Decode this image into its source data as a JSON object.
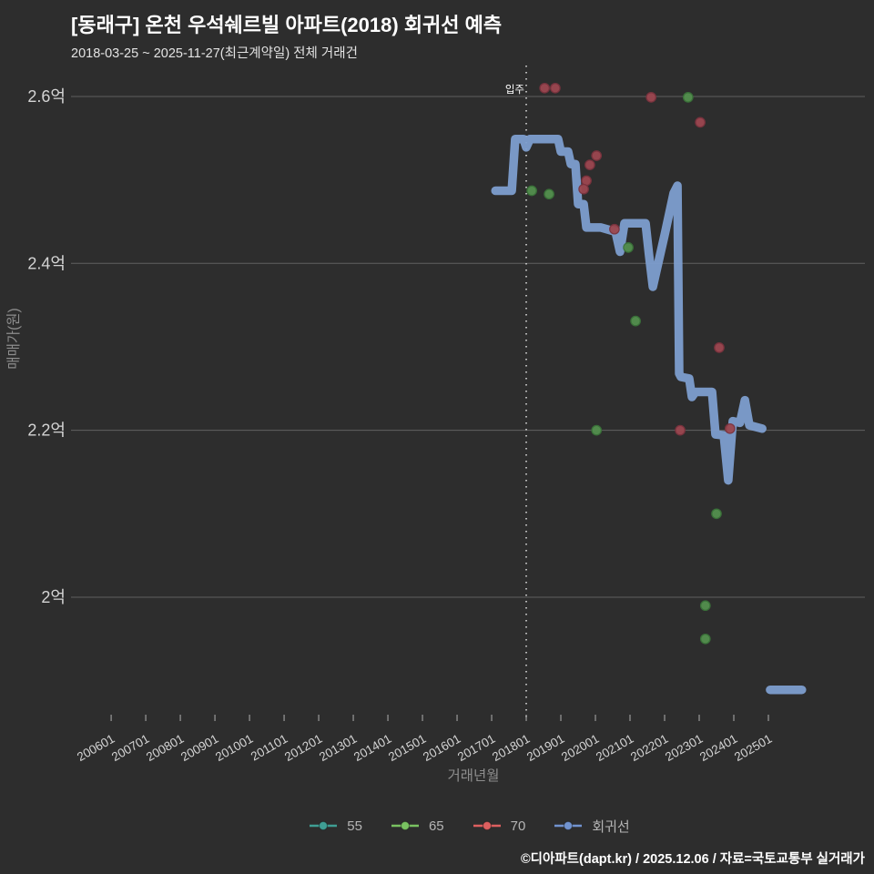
{
  "chart_data": {
    "type": "line+scatter",
    "title": "[동래구] 온천 우석쉐르빌 아파트(2018) 회귀선 예측",
    "subtitle": "2018-03-25 ~ 2025-11-27(최근계약일) 전체 거래건",
    "xlabel": "거래년월",
    "ylabel": "매매가(원)",
    "grid": true,
    "legend_position": "bottom-center",
    "axis": {
      "x_range": [
        2004.84,
        2027.79
      ],
      "y_range": [
        1.856,
        2.6414
      ]
    },
    "y_ticks": [
      {
        "label": "2.6억",
        "value": 2.6
      },
      {
        "label": "2.4억",
        "value": 2.4
      },
      {
        "label": "2.2억",
        "value": 2.2
      },
      {
        "label": "2억",
        "value": 2.0
      }
    ],
    "x_ticks": [
      {
        "label": "200601",
        "year": 2006
      },
      {
        "label": "200701",
        "year": 2007
      },
      {
        "label": "200801",
        "year": 2008
      },
      {
        "label": "200901",
        "year": 2009
      },
      {
        "label": "201001",
        "year": 2010
      },
      {
        "label": "201101",
        "year": 2011
      },
      {
        "label": "201201",
        "year": 2012
      },
      {
        "label": "201301",
        "year": 2013
      },
      {
        "label": "201401",
        "year": 2014
      },
      {
        "label": "201501",
        "year": 2015
      },
      {
        "label": "201601",
        "year": 2016
      },
      {
        "label": "201701",
        "year": 2017
      },
      {
        "label": "201801",
        "year": 2018
      },
      {
        "label": "201901",
        "year": 2019
      },
      {
        "label": "202001",
        "year": 2020
      },
      {
        "label": "202101",
        "year": 2021
      },
      {
        "label": "202201",
        "year": 2022
      },
      {
        "label": "202301",
        "year": 2023
      },
      {
        "label": "202401",
        "year": 2024
      },
      {
        "label": "202501",
        "year": 2025
      }
    ],
    "annotation": {
      "label": "입주",
      "year": 2018.0
    },
    "series": [
      {
        "name": "55",
        "kind": "scatter",
        "legend_color": "#3f9e94",
        "dot_color": "#3f8e85",
        "dot_stroke": "#2c6f68",
        "points": []
      },
      {
        "name": "65",
        "kind": "scatter",
        "legend_color": "#79c261",
        "dot_color": "#538f4e",
        "dot_stroke": "#3a7339",
        "points": [
          [
            2018.16,
            2.487
          ],
          [
            2018.66,
            2.483
          ],
          [
            2022.68,
            2.599
          ],
          [
            2020.95,
            2.419
          ],
          [
            2021.16,
            2.331
          ],
          [
            2020.03,
            2.2
          ],
          [
            2023.5,
            2.1
          ],
          [
            2023.18,
            1.99
          ],
          [
            2023.18,
            1.95
          ]
        ]
      },
      {
        "name": "70",
        "kind": "scatter",
        "legend_color": "#dd5f5f",
        "dot_color": "#9c4750",
        "dot_stroke": "#7c333e",
        "points": [
          [
            2018.53,
            2.61
          ],
          [
            2018.84,
            2.61
          ],
          [
            2021.61,
            2.599
          ],
          [
            2023.03,
            2.569
          ],
          [
            2020.03,
            2.529
          ],
          [
            2019.84,
            2.518
          ],
          [
            2019.74,
            2.499
          ],
          [
            2019.66,
            2.489
          ],
          [
            2020.55,
            2.441
          ],
          [
            2022.45,
            2.2
          ],
          [
            2023.58,
            2.299
          ],
          [
            2023.89,
            2.202
          ]
        ]
      },
      {
        "name": "회귀선",
        "kind": "line",
        "legend_color": "#7193cf",
        "line_color": "#7d9ecf",
        "segments": [
          [
            [
              2017.11,
              2.487
            ],
            [
              2017.58,
              2.487
            ],
            [
              2017.68,
              2.549
            ],
            [
              2017.92,
              2.549
            ],
            [
              2018.0,
              2.539
            ],
            [
              2018.11,
              2.549
            ],
            [
              2018.92,
              2.549
            ],
            [
              2019.0,
              2.534
            ],
            [
              2019.21,
              2.534
            ],
            [
              2019.29,
              2.519
            ],
            [
              2019.42,
              2.519
            ],
            [
              2019.5,
              2.471
            ],
            [
              2019.66,
              2.471
            ],
            [
              2019.74,
              2.443
            ],
            [
              2020.16,
              2.443
            ],
            [
              2020.58,
              2.438
            ],
            [
              2020.71,
              2.414
            ],
            [
              2020.84,
              2.448
            ],
            [
              2021.45,
              2.448
            ],
            [
              2021.55,
              2.41
            ],
            [
              2021.66,
              2.372
            ],
            [
              2022.0,
              2.434
            ],
            [
              2022.26,
              2.484
            ],
            [
              2022.37,
              2.493
            ],
            [
              2022.42,
              2.268
            ],
            [
              2022.47,
              2.264
            ],
            [
              2022.71,
              2.262
            ],
            [
              2022.79,
              2.24
            ],
            [
              2022.89,
              2.246
            ],
            [
              2023.37,
              2.246
            ],
            [
              2023.47,
              2.195
            ],
            [
              2023.71,
              2.194
            ],
            [
              2023.84,
              2.14
            ],
            [
              2023.97,
              2.211
            ],
            [
              2024.18,
              2.209
            ],
            [
              2024.32,
              2.236
            ],
            [
              2024.45,
              2.206
            ],
            [
              2024.82,
              2.202
            ]
          ],
          [
            [
              2025.05,
              1.889
            ],
            [
              2025.97,
              1.889
            ]
          ]
        ]
      }
    ]
  },
  "footer": {
    "credit": "©디아파트(dapt.kr) / 2025.12.06 / 자료=국토교통부 실거래가"
  },
  "style": {
    "background": "#2d2d2d",
    "grid_color": "#8a8a8a",
    "tick_text_color": "#d4d4d4",
    "axis_title_color": "#8d8d8d",
    "annotation_color": "#ffffff"
  }
}
